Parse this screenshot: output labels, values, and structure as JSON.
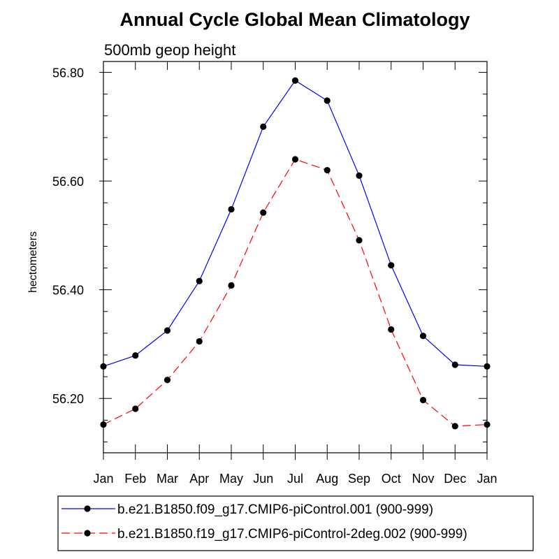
{
  "chart_data": {
    "type": "line",
    "title": "Annual Cycle Global Mean Climatology",
    "subtitle": "500mb geop height",
    "ylabel": "hectometers",
    "xlabel": "",
    "categories": [
      "Jan",
      "Feb",
      "Mar",
      "Apr",
      "May",
      "Jun",
      "Jul",
      "Aug",
      "Sep",
      "Oct",
      "Nov",
      "Dec",
      "Jan"
    ],
    "ylim": [
      56.1,
      56.82
    ],
    "yticks": [
      56.2,
      56.4,
      56.6,
      56.8
    ],
    "ytick_labels": [
      "56.20",
      "56.40",
      "56.60",
      "56.80"
    ],
    "grid": false,
    "legend_position": "bottom",
    "series": [
      {
        "name": "b.e21.B1850.f09_g17.CMIP6-piControl.001 (900-999)",
        "color": "#0000ff",
        "dash": "solid",
        "values": [
          56.259,
          56.279,
          56.325,
          56.416,
          56.548,
          56.7,
          56.785,
          56.748,
          56.61,
          56.445,
          56.315,
          56.262,
          56.259
        ]
      },
      {
        "name": "b.e21.B1850.f19_g17.CMIP6-piControl-2deg.002 (900-999)",
        "color": "#ff0000",
        "dash": "dashed",
        "values": [
          56.152,
          56.181,
          56.234,
          56.305,
          56.408,
          56.542,
          56.64,
          56.62,
          56.491,
          56.327,
          56.197,
          56.149,
          56.152
        ]
      }
    ]
  }
}
